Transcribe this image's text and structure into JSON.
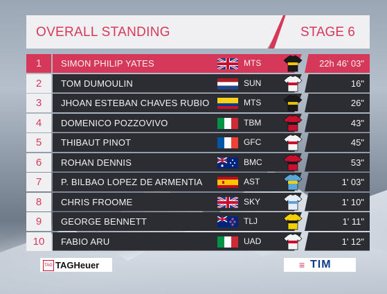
{
  "header": {
    "title": "OVERALL STANDING",
    "stage": "STAGE 6"
  },
  "colors": {
    "accent": "#d6385a",
    "row_bg": "#2b2d33",
    "header_bg": "#f0f0f2"
  },
  "standings": [
    {
      "pos": "1",
      "name": "SIMON PHILIP YATES",
      "flag": "gb-flag-icon",
      "team": "MTS",
      "jersey": "pink-jersey-icon",
      "time": "22h 46' 03\""
    },
    {
      "pos": "2",
      "name": "TOM DUMOULIN",
      "flag": "nl-flag-icon",
      "team": "SUN",
      "jersey": "white-jersey-icon",
      "time": "16\""
    },
    {
      "pos": "3",
      "name": "JHOAN ESTEBAN CHAVES RUBIO",
      "flag": "co-flag-icon",
      "team": "MTS",
      "jersey": "green-jersey-icon",
      "time": "26\""
    },
    {
      "pos": "4",
      "name": "DOMENICO POZZOVIVO",
      "flag": "it-flag-icon",
      "team": "TBM",
      "jersey": "red-jersey-icon",
      "time": "43\""
    },
    {
      "pos": "5",
      "name": "THIBAUT PINOT",
      "flag": "fr-flag-icon",
      "team": "GFC",
      "jersey": "white-jersey-icon",
      "time": "45\""
    },
    {
      "pos": "6",
      "name": "ROHAN DENNIS",
      "flag": "au-flag-icon",
      "team": "BMC",
      "jersey": "red-jersey-icon",
      "time": "53\""
    },
    {
      "pos": "7",
      "name": "P. BILBAO LOPEZ DE ARMENTIA",
      "flag": "es-flag-icon",
      "team": "AST",
      "jersey": "blue-jersey-icon",
      "time": "1' 03\""
    },
    {
      "pos": "8",
      "name": "CHRIS FROOME",
      "flag": "gb-flag-icon",
      "team": "SKY",
      "jersey": "lightblue-jersey-icon",
      "time": "1' 10\""
    },
    {
      "pos": "9",
      "name": "GEORGE BENNETT",
      "flag": "nz-flag-icon",
      "team": "TLJ",
      "jersey": "yellow-jersey-icon",
      "time": "1' 11\""
    },
    {
      "pos": "10",
      "name": "FABIO ARU",
      "flag": "it-flag-icon",
      "team": "UAD",
      "jersey": "white-jersey-icon",
      "time": "1' 12\""
    }
  ],
  "sponsors": {
    "left": "TAGHeuer",
    "left_logo": "TAG",
    "right": "TIM"
  }
}
